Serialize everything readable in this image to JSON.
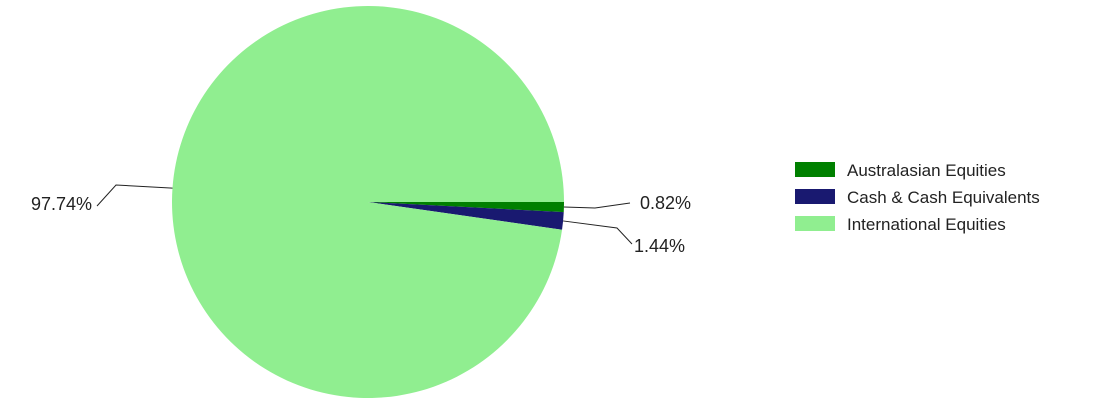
{
  "chart_data": {
    "type": "pie",
    "title": "",
    "slices": [
      {
        "label": "Australasian Equities",
        "value": 0.82,
        "display": "0.82%",
        "color": "#008000"
      },
      {
        "label": "Cash & Cash Equivalents",
        "value": 1.44,
        "display": "1.44%",
        "color": "#191970"
      },
      {
        "label": "International Equities",
        "value": 97.74,
        "display": "97.74%",
        "color": "#90EE90"
      }
    ],
    "start_angle_deg": 0,
    "direction": "clockwise",
    "legend_position": "right",
    "label_line_color": "#222222"
  }
}
